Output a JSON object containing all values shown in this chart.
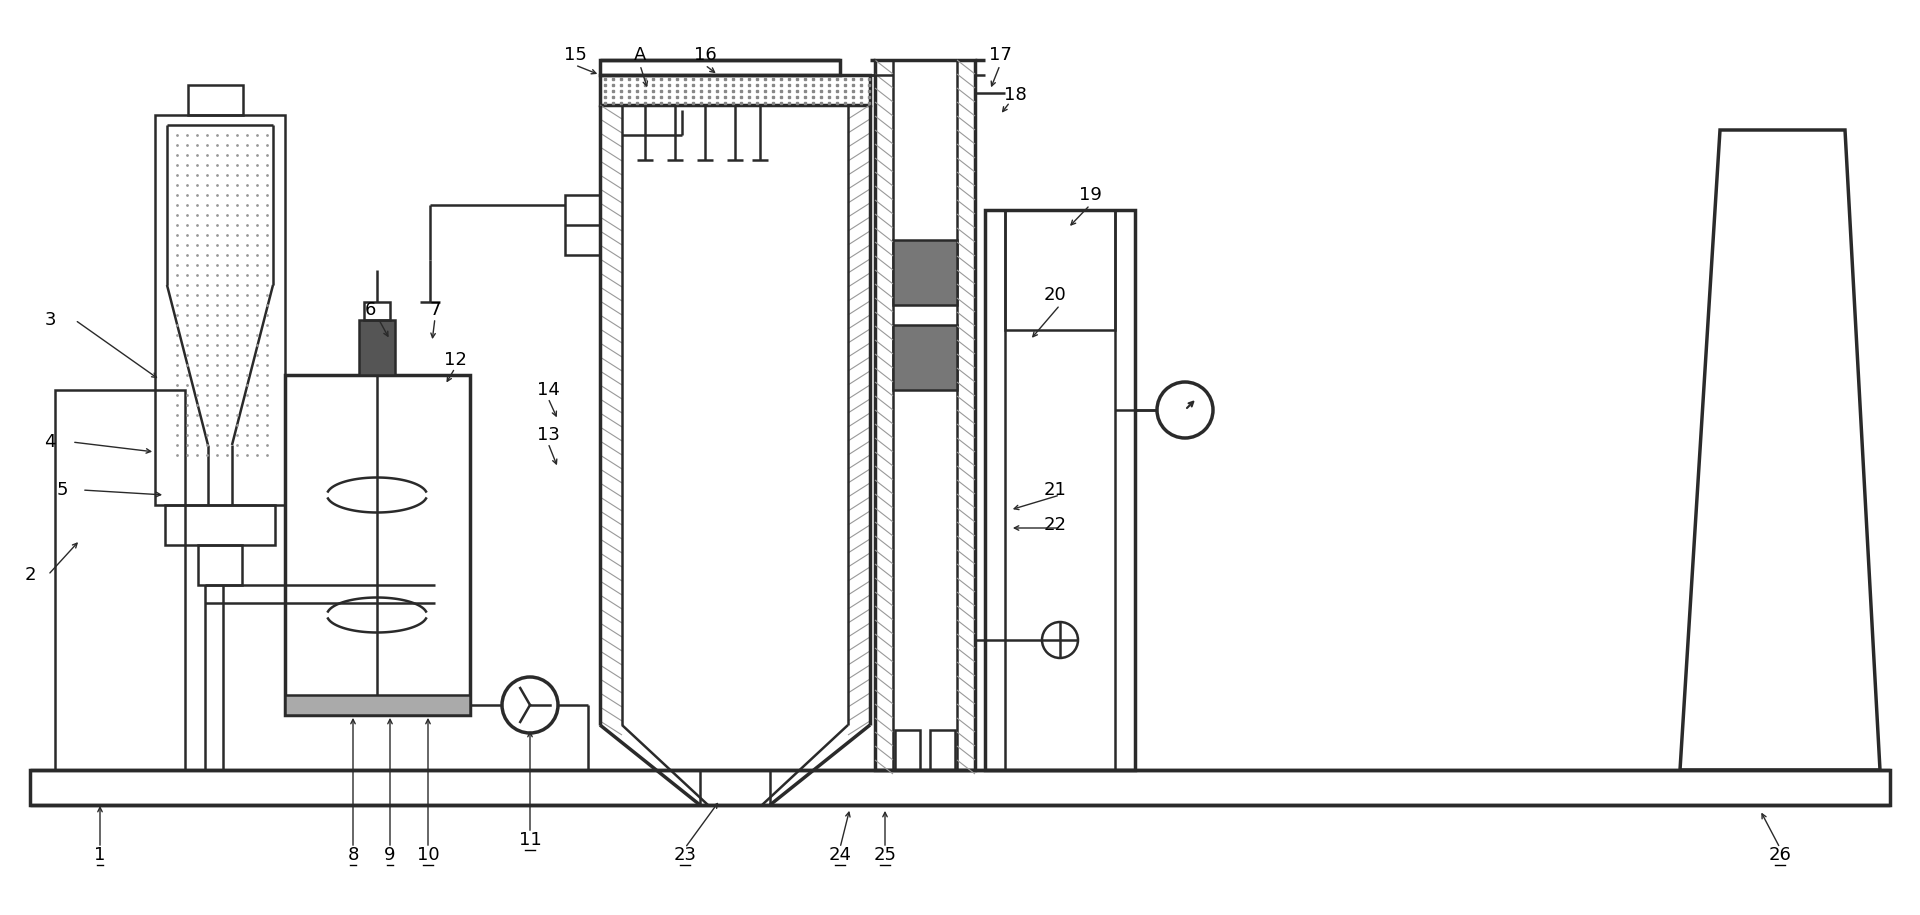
{
  "bg_color": "#ffffff",
  "lc": "#2a2a2a",
  "lw": 1.8,
  "lw2": 2.5,
  "figsize": [
    19.2,
    9.15
  ],
  "dpi": 100
}
